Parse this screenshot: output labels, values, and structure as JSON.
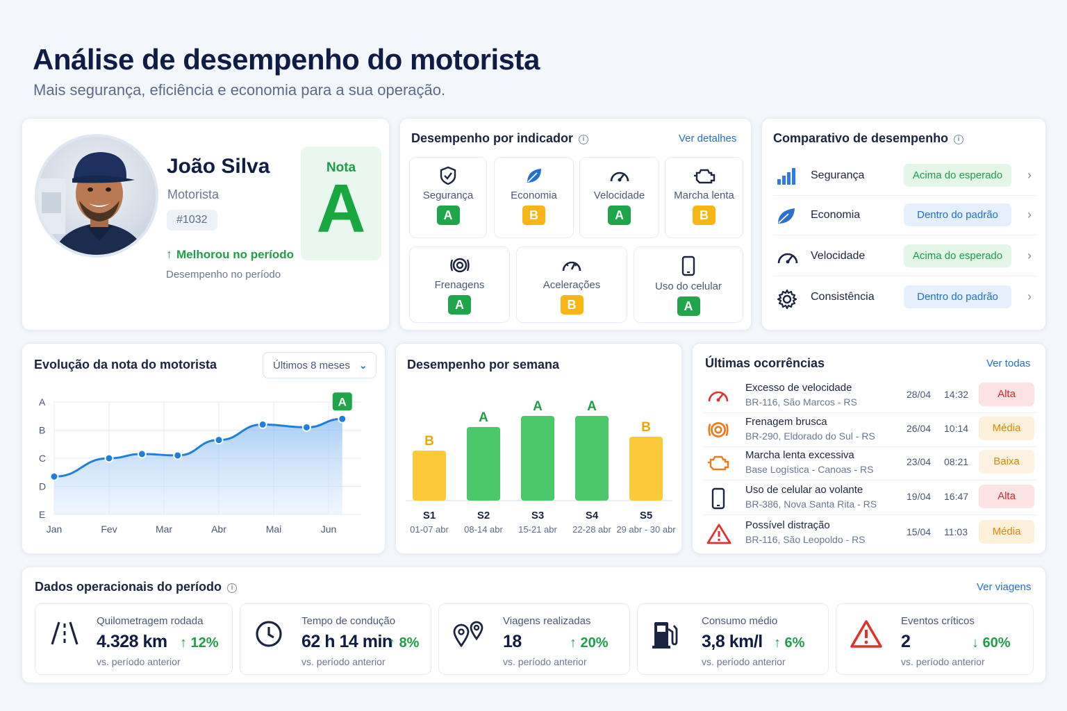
{
  "header": {
    "title": "Análise de desempenho do motorista",
    "subtitle": "Mais segurança, eficiência e economia para a sua operação."
  },
  "profile": {
    "name": "João Silva",
    "role": "Motorista",
    "id": "#1032",
    "trend": "Melhorou no período",
    "period_label": "Desempenho no período",
    "score_label": "Nota",
    "score": "A"
  },
  "indicators": {
    "title": "Desempenho por indicador",
    "link": "Ver detalhes",
    "items": [
      {
        "label": "Segurança",
        "grade": "A",
        "icon": "shield-icon"
      },
      {
        "label": "Economia",
        "grade": "B",
        "icon": "leaf-icon"
      },
      {
        "label": "Velocidade",
        "grade": "A",
        "icon": "speedometer-icon"
      },
      {
        "label": "Marcha lenta",
        "grade": "B",
        "icon": "engine-icon"
      },
      {
        "label": "Frenagens",
        "grade": "A",
        "icon": "brake-icon"
      },
      {
        "label": "Acelerações",
        "grade": "B",
        "icon": "gauge-icon"
      },
      {
        "label": "Uso do celular",
        "grade": "A",
        "icon": "phone-icon"
      }
    ]
  },
  "comparison": {
    "title": "Comparativo de desempenho",
    "rows": [
      {
        "label": "Segurança",
        "status": "Acima do esperado",
        "icon": "bar-chart-icon"
      },
      {
        "label": "Economia",
        "status": "Dentro do padrão",
        "icon": "leaf-icon"
      },
      {
        "label": "Velocidade",
        "status": "Acima do esperado",
        "icon": "speedometer-icon"
      },
      {
        "label": "Consistência",
        "status": "Dentro do padrão",
        "icon": "gear-icon"
      }
    ]
  },
  "evolution": {
    "title": "Evolução da nota do motorista",
    "period_select": "Últimos 8 meses",
    "last_badge": "A"
  },
  "weekly": {
    "title": "Desempenho por semana"
  },
  "chart_data": [
    {
      "type": "area",
      "title": "Evolução da nota do motorista",
      "categories": [
        "Jan",
        "Fev",
        "Mar",
        "Abr",
        "Mai",
        "Jun"
      ],
      "y_ticks": [
        "A",
        "B",
        "C",
        "D",
        "E"
      ],
      "ylim": [
        0,
        4
      ],
      "x": [
        0,
        1,
        1.6,
        2.25,
        3,
        3.8,
        4.6,
        5.25
      ],
      "y": [
        1.35,
        2.0,
        2.15,
        2.1,
        2.65,
        3.2,
        3.1,
        3.4
      ],
      "color": "#1f7fe0",
      "grid": true
    },
    {
      "type": "bar",
      "title": "Desempenho por semana",
      "categories": [
        "S1",
        "S2",
        "S3",
        "S4",
        "S5"
      ],
      "subcategories": [
        "01-07 abr",
        "08-14 abr",
        "15-21 abr",
        "22-28 abr",
        "29 abr - 30 abr"
      ],
      "grades": [
        "B",
        "A",
        "A",
        "A",
        "B"
      ],
      "values": [
        72,
        106,
        122,
        122,
        92
      ],
      "colors": {
        "A": "#4cc76a",
        "B": "#fbc93a"
      },
      "grade_text_colors": {
        "A": "#1e9e48",
        "B": "#f0a500"
      }
    }
  ],
  "occurrences": {
    "title": "Últimas ocorrências",
    "link": "Ver todas",
    "items": [
      {
        "title": "Excesso de velocidade",
        "location": "BR-116, São Marcos - RS",
        "date": "28/04",
        "time": "14:32",
        "severity": "Alta",
        "icon": "speedometer-icon"
      },
      {
        "title": "Frenagem brusca",
        "location": "BR-290, Eldorado do Sul - RS",
        "date": "26/04",
        "time": "10:14",
        "severity": "Média",
        "icon": "brake-icon"
      },
      {
        "title": "Marcha lenta excessiva",
        "location": "Base Logística - Canoas - RS",
        "date": "23/04",
        "time": "08:21",
        "severity": "Baixa",
        "icon": "engine-icon"
      },
      {
        "title": "Uso de celular ao volante",
        "location": "BR-386, Nova Santa Rita - RS",
        "date": "19/04",
        "time": "16:47",
        "severity": "Alta",
        "icon": "phone-icon"
      },
      {
        "title": "Possível distração",
        "location": "BR-116, São Leopoldo - RS",
        "date": "15/04",
        "time": "11:03",
        "severity": "Média",
        "icon": "warning-icon"
      }
    ]
  },
  "operational": {
    "title": "Dados operacionais do período",
    "link": "Ver viagens",
    "kpis": [
      {
        "label": "Quilometragem rodada",
        "value": "4.328 km",
        "change": "↑ 12%",
        "compare": "vs. período anterior",
        "icon": "road-icon"
      },
      {
        "label": "Tempo de condução",
        "value": "62 h 14 min",
        "change": "↑ 8%",
        "compare": "vs. período anterior",
        "icon": "clock-icon"
      },
      {
        "label": "Viagens realizadas",
        "value": "18",
        "change": "↑ 20%",
        "compare": "vs. período anterior",
        "icon": "map-pins-icon"
      },
      {
        "label": "Consumo médio",
        "value": "3,8 km/l",
        "change": "↑ 6%",
        "compare": "vs. período anterior",
        "icon": "fuel-pump-icon"
      },
      {
        "label": "Eventos críticos",
        "value": "2",
        "change": "↓ 60%",
        "compare": "vs. período anterior",
        "icon": "warning-icon"
      }
    ]
  }
}
